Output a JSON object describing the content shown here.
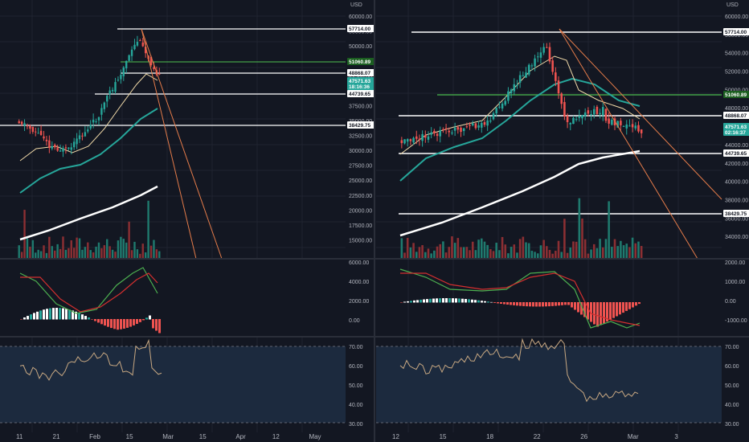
{
  "colors": {
    "up": "#26a69a",
    "down": "#ef5350",
    "vol_up": "#1f7a6e",
    "vol_down": "#8c2f33",
    "ma_fast": "#f0d9a8",
    "ma_mid": "#26a69a",
    "ma_slow": "#ffffff",
    "macd_line": "#4caf50",
    "signal_line": "#d32f2f",
    "rsi_line": "#c8a882",
    "rsi_band": "#1c2a3e",
    "hline_white": "#ffffff",
    "hline_green": "#43a047",
    "trendline": "#e57c4a",
    "tag_dark": "#ffffff",
    "tag_green": "#1b5e20",
    "tag_teal": "#26a69a"
  },
  "left": {
    "price_scale": {
      "currency_label": "USD",
      "ticks": [
        "60000.00",
        "55000.00",
        "50000.00",
        "45000.00",
        "42500.00",
        "40000.00",
        "37500.00",
        "35000.00",
        "32500.00",
        "30000.00",
        "27500.00",
        "25000.00",
        "22500.00",
        "20000.00",
        "17500.00",
        "15000.00"
      ],
      "tags": [
        {
          "text": "57714.00",
          "kind": "white"
        },
        {
          "text": "51060.89",
          "kind": "green"
        },
        {
          "text": "48868.07",
          "kind": "white"
        },
        {
          "text": "BTCUSD",
          "kind": "teal"
        },
        {
          "text": "47571.63",
          "kind": "teal"
        },
        {
          "text": "18:16:36",
          "kind": "teal"
        },
        {
          "text": "44739.65",
          "kind": "white"
        },
        {
          "text": "38429.75",
          "kind": "white"
        }
      ]
    },
    "macd_scale": [
      "6000.00",
      "4000.00",
      "2000.00",
      "0.00"
    ],
    "rsi_scale": [
      "70.00",
      "60.00",
      "50.00",
      "40.00",
      "30.00"
    ],
    "dates": [
      "11",
      "21",
      "Feb",
      "15",
      "Mar",
      "15",
      "Apr",
      "12",
      "May"
    ]
  },
  "right": {
    "price_scale": {
      "currency_label": "USD",
      "ticks": [
        "60000.00",
        "56000.00",
        "54000.00",
        "52000.00",
        "50000.00",
        "48000.00",
        "46000.00",
        "44000.00",
        "42000.00",
        "40000.00",
        "38000.00",
        "36000.00",
        "34000.00"
      ],
      "tags": [
        {
          "text": "57714.00",
          "kind": "white"
        },
        {
          "text": "51060.89",
          "kind": "green"
        },
        {
          "text": "48868.07",
          "kind": "white"
        },
        {
          "text": "BTCUSD",
          "kind": "teal"
        },
        {
          "text": "47571.63",
          "kind": "teal"
        },
        {
          "text": "02:16:37",
          "kind": "teal"
        },
        {
          "text": "44739.65",
          "kind": "white"
        },
        {
          "text": "38429.75",
          "kind": "white"
        }
      ]
    },
    "macd_scale": [
      "2000.00",
      "1000.00",
      "0.00",
      "-1000.00"
    ],
    "rsi_scale": [
      "70.00",
      "60.00",
      "50.00",
      "40.00",
      "30.00"
    ],
    "dates": [
      "12",
      "15",
      "18",
      "22",
      "26",
      "Mar",
      "3"
    ]
  }
}
